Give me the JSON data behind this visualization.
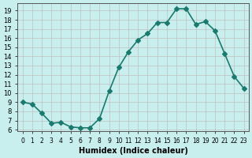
{
  "x": [
    0,
    1,
    2,
    3,
    4,
    5,
    6,
    7,
    8,
    9,
    10,
    11,
    12,
    13,
    14,
    15,
    16,
    17,
    18,
    19,
    20,
    21,
    22,
    23
  ],
  "y": [
    9.0,
    8.8,
    7.8,
    6.7,
    6.8,
    6.3,
    6.2,
    6.2,
    7.2,
    10.2,
    12.8,
    14.5,
    15.8,
    16.5,
    17.7,
    17.7,
    19.2,
    19.2,
    17.5,
    17.8,
    16.8,
    14.3,
    11.8,
    10.5
  ],
  "xlabel": "Humidex (Indice chaleur)",
  "line_color": "#1a7a6e",
  "bg_color": "#c8eeee",
  "grid_color": "#c0c0c0",
  "ylim_min": 5.8,
  "ylim_max": 19.8,
  "xlim_min": -0.5,
  "xlim_max": 23.5,
  "yticks": [
    6,
    7,
    8,
    9,
    10,
    11,
    12,
    13,
    14,
    15,
    16,
    17,
    18,
    19
  ],
  "xticks": [
    0,
    1,
    2,
    3,
    4,
    5,
    6,
    7,
    8,
    9,
    10,
    11,
    12,
    13,
    14,
    15,
    16,
    17,
    18,
    19,
    20,
    21,
    22,
    23
  ],
  "xtick_labels": [
    "0",
    "1",
    "2",
    "3",
    "4",
    "5",
    "6",
    "7",
    "8",
    "9",
    "10",
    "11",
    "12",
    "13",
    "14",
    "15",
    "16",
    "17",
    "18",
    "19",
    "20",
    "21",
    "22",
    "23"
  ],
  "marker": "D",
  "markersize": 3,
  "linewidth": 1.2
}
